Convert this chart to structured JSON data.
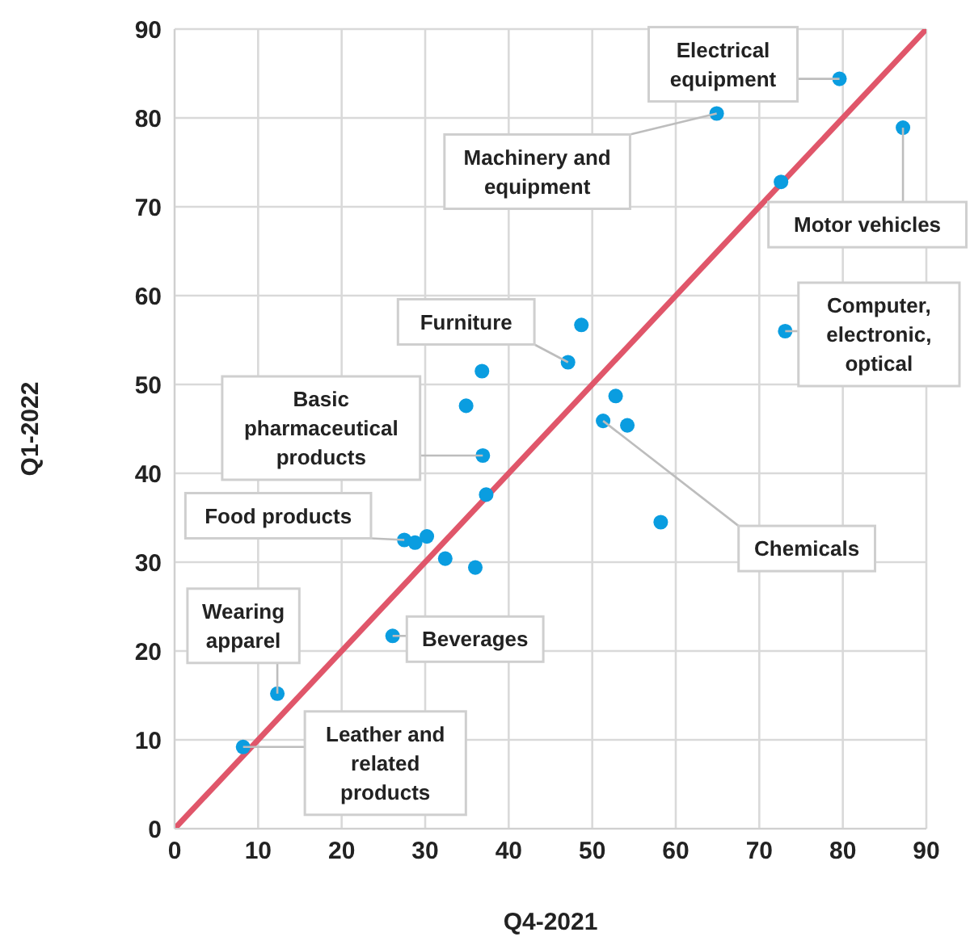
{
  "chart_data": {
    "type": "scatter",
    "xlabel": "Q4-2021",
    "ylabel": "Q1-2022",
    "xlim": [
      0,
      90
    ],
    "ylim": [
      0,
      90
    ],
    "xticks": [
      0,
      10,
      20,
      30,
      40,
      50,
      60,
      70,
      80,
      90
    ],
    "yticks": [
      0,
      10,
      20,
      30,
      40,
      50,
      60,
      70,
      80,
      90
    ],
    "grid": true,
    "marker": "circle",
    "series": [
      {
        "color": "#0a9de0",
        "x": [
          79.6,
          64.9,
          87.2,
          72.6,
          73.1,
          48.7,
          47.1,
          36.8,
          34.9,
          52.8,
          51.3,
          54.2,
          36.9,
          37.3,
          58.2,
          27.5,
          28.8,
          30.2,
          32.4,
          36.0,
          26.1,
          12.3,
          8.2
        ],
        "values": [
          84.4,
          80.5,
          78.9,
          72.8,
          56.0,
          56.7,
          52.5,
          51.5,
          47.6,
          48.7,
          45.9,
          45.4,
          42.0,
          37.6,
          34.5,
          32.5,
          32.2,
          32.9,
          30.4,
          29.4,
          21.7,
          15.2,
          9.2
        ]
      },
      {
        "type": "line",
        "color": "#e0566a",
        "x": [
          0,
          90
        ],
        "values": [
          0,
          90
        ],
        "marker": "none",
        "line_style": "solid"
      }
    ],
    "annotations": [
      {
        "text": "Electrical equipment",
        "x": 79.6,
        "y": 84.4
      },
      {
        "text": "Machinery and equipment",
        "x": 64.9,
        "y": 80.5
      },
      {
        "text": "Motor vehicles",
        "x": 87.2,
        "y": 78.9
      },
      {
        "text": "Computer, electronic, optical",
        "x": 73.1,
        "y": 56.0
      },
      {
        "text": "Furniture",
        "x": 47.1,
        "y": 52.5
      },
      {
        "text": "Basic pharmaceutical products",
        "x": 36.9,
        "y": 42.0
      },
      {
        "text": "Food products",
        "x": 27.5,
        "y": 32.5
      },
      {
        "text": "Chemicals",
        "x": 51.3,
        "y": 45.9
      },
      {
        "text": "Wearing apparel",
        "x": 12.3,
        "y": 15.2
      },
      {
        "text": "Beverages",
        "x": 26.1,
        "y": 21.7
      },
      {
        "text": "Leather and related products",
        "x": 8.2,
        "y": 9.2
      }
    ]
  }
}
